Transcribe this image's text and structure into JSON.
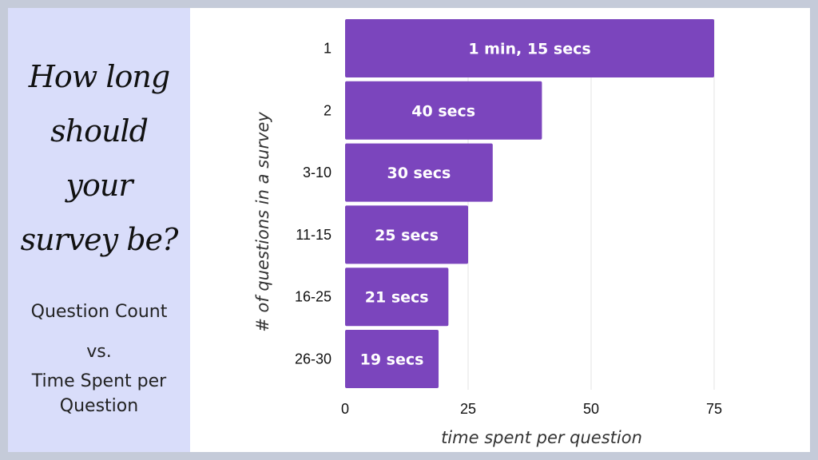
{
  "side": {
    "title_lines": [
      "How long",
      "should",
      "your",
      "survey be?"
    ],
    "subtitle_line1": "Question Count",
    "subtitle_line2": "vs.",
    "subtitle_line3": "Time Spent per",
    "subtitle_line4": "Question"
  },
  "colors": {
    "bar": "#7b45bd",
    "grid": "#e3e3e3",
    "panel": "#d9ddfa",
    "border": "#c5cbd9"
  },
  "chart_data": {
    "type": "bar",
    "orientation": "horizontal",
    "categories": [
      "1",
      "2",
      "3-10",
      "11-15",
      "16-25",
      "26-30"
    ],
    "values": [
      75,
      40,
      30,
      25,
      21,
      19
    ],
    "value_labels": [
      "1 min, 15 secs",
      "40 secs",
      "30 secs",
      "25 secs",
      "21 secs",
      "19 secs"
    ],
    "xlabel": "time spent per question",
    "ylabel": "# of questions in a survey",
    "xlim": [
      0,
      80
    ],
    "xticks": [
      0,
      25,
      50,
      75
    ],
    "grid": true,
    "legend": "none"
  }
}
